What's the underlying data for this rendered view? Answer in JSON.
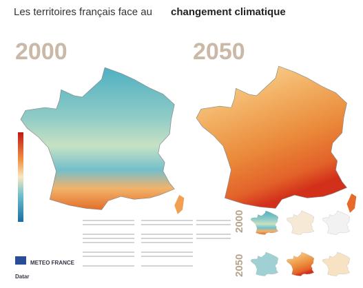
{
  "header": {
    "title_light": "Les territoires français face au",
    "title_bold": "changement climatique"
  },
  "maps": [
    {
      "year": "2000"
    },
    {
      "year": "2050"
    }
  ],
  "thumbnails": {
    "row_labels": [
      "2000",
      "2050"
    ]
  },
  "logos": [
    "METEO FRANCE",
    "Datar"
  ]
}
